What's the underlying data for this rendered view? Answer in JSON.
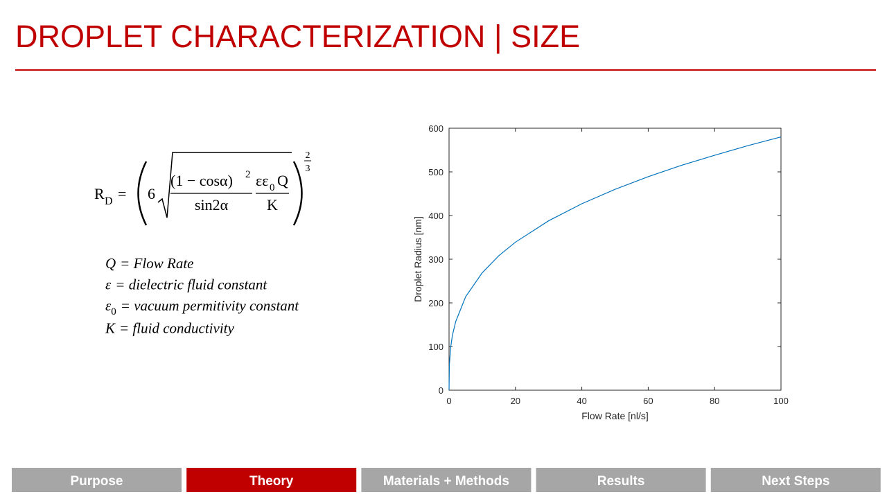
{
  "slide_title": "DROPLET CHARACTERIZATION | SIZE",
  "equation": {
    "lhs": "R",
    "lhs_subscript": "D",
    "equals": "=",
    "coefficient": "6",
    "numerator_1": "(1 − cosα)",
    "numerator_1_power": "2",
    "denominator_1": "sin2α",
    "numerator_2": "εε",
    "numerator_2_subscript": "0",
    "numerator_2_tail": "Q",
    "denominator_2": "K",
    "exponent_numerator": "2",
    "exponent_denominator": "3"
  },
  "definitions": [
    {
      "symbol": "Q",
      "text": "= Flow Rate"
    },
    {
      "symbol": "ε",
      "text": "= dielectric fluid constant"
    },
    {
      "symbol": "ε",
      "subscript": "0",
      "text": "= vacuum permitivity constant"
    },
    {
      "symbol": "K",
      "text": "= fluid conductivity"
    }
  ],
  "chart_data": {
    "type": "line",
    "x_label": "Flow Rate [nl/s]",
    "y_label": "Droplet Radius [nm]",
    "x": [
      0,
      0.1,
      0.5,
      1,
      2,
      5,
      10,
      15,
      20,
      30,
      40,
      50,
      60,
      70,
      80,
      90,
      100
    ],
    "series": [
      {
        "color": "#0072bd",
        "values": [
          0,
          58,
          99,
          125,
          157,
          214,
          269,
          308,
          339,
          388,
          427,
          460,
          489,
          515,
          538,
          560,
          580
        ]
      }
    ],
    "xlim": [
      0,
      100
    ],
    "xticks": [
      0,
      20,
      40,
      60,
      80,
      100
    ],
    "ylim": [
      0,
      600
    ],
    "yticks": [
      0,
      100,
      200,
      300,
      400,
      500,
      600
    ],
    "grid": false
  },
  "nav_tabs": [
    "Purpose",
    "Theory",
    "Materials + Methods",
    "Results",
    "Next Steps"
  ],
  "active_tab": 1,
  "tab_color": "#a6a6a6",
  "active_tab_color": "#c00000"
}
